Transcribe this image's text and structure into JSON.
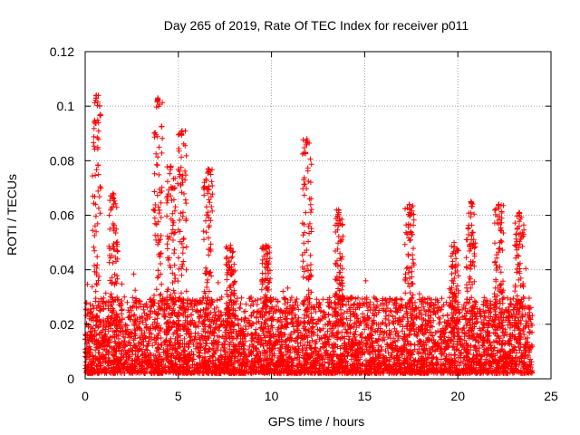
{
  "chart_data": {
    "type": "scatter",
    "title": "Day 265 of 2019, Rate Of TEC Index for receiver p011",
    "xlabel": "GPS time / hours",
    "ylabel": "ROTI / TECUs",
    "xlim": [
      0,
      25
    ],
    "ylim": [
      0,
      0.12
    ],
    "xticks": [
      0,
      5,
      10,
      15,
      20,
      25
    ],
    "yticks": [
      0,
      0.02,
      0.04,
      0.06,
      0.08,
      0.1,
      0.12
    ],
    "xtick_labels": [
      "0",
      "5",
      "10",
      "15",
      "20",
      "25"
    ],
    "ytick_labels": [
      "0",
      "0.02",
      "0.04",
      "0.06",
      "0.08",
      "0.1",
      "0.12"
    ],
    "grid": true,
    "marker": "+",
    "color": "#ff0000",
    "x_range_of_data": [
      0,
      24
    ],
    "typical_y_range": [
      0.002,
      0.03
    ],
    "peaks": [
      {
        "x": 0.6,
        "y": 0.104
      },
      {
        "x": 1.5,
        "y": 0.068
      },
      {
        "x": 3.9,
        "y": 0.103
      },
      {
        "x": 4.6,
        "y": 0.078
      },
      {
        "x": 5.2,
        "y": 0.091
      },
      {
        "x": 6.6,
        "y": 0.077
      },
      {
        "x": 7.8,
        "y": 0.049
      },
      {
        "x": 9.7,
        "y": 0.049
      },
      {
        "x": 11.9,
        "y": 0.088
      },
      {
        "x": 13.6,
        "y": 0.062
      },
      {
        "x": 17.4,
        "y": 0.064
      },
      {
        "x": 19.8,
        "y": 0.05
      },
      {
        "x": 20.7,
        "y": 0.065
      },
      {
        "x": 22.2,
        "y": 0.064
      },
      {
        "x": 23.3,
        "y": 0.061
      }
    ]
  }
}
